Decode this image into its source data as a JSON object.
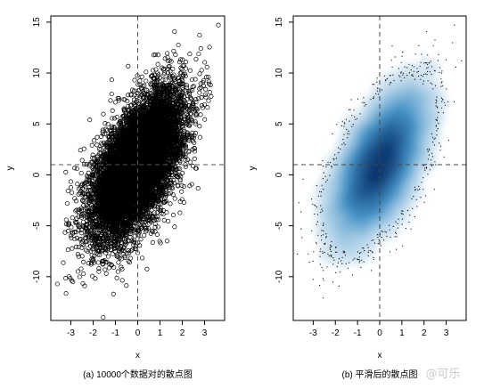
{
  "chart_data": [
    {
      "type": "scatter",
      "caption": "(a) 10000个数据对的散点图",
      "xlabel": "x",
      "ylabel": "y",
      "xlim": [
        -3.9,
        3.9
      ],
      "ylim": [
        -14.3,
        15.6
      ],
      "xticks": [
        -3,
        -2,
        -1,
        0,
        1,
        2,
        3
      ],
      "yticks": [
        -10,
        -5,
        0,
        5,
        10,
        15
      ],
      "reference_lines": {
        "vertical_x": 0,
        "horizontal_y": 1
      },
      "n_points": 10000,
      "point_style": "open-circle",
      "point_color": "#000000",
      "distribution": {
        "x_mean": 0,
        "x_sd": 1,
        "y_mean": 1,
        "y_sd": 3.5,
        "correlation": 0.6
      }
    },
    {
      "type": "heatmap",
      "caption": "(b) 平滑后的散点图",
      "xlabel": "x",
      "ylabel": "y",
      "xlim": [
        -3.9,
        3.9
      ],
      "ylim": [
        -14.3,
        15.6
      ],
      "xticks": [
        -3,
        -2,
        -1,
        0,
        1,
        2,
        3
      ],
      "yticks": [
        -10,
        -5,
        0,
        5,
        10,
        15
      ],
      "reference_lines": {
        "vertical_x": 0,
        "horizontal_y": 1
      },
      "colors": {
        "low": "#ffffff",
        "high": "#08306b"
      },
      "outlier_dots": true,
      "distribution": {
        "x_mean": 0,
        "x_sd": 1,
        "y_mean": 1,
        "y_sd": 3.5,
        "correlation": 0.6
      }
    }
  ],
  "watermark": "@可乐"
}
